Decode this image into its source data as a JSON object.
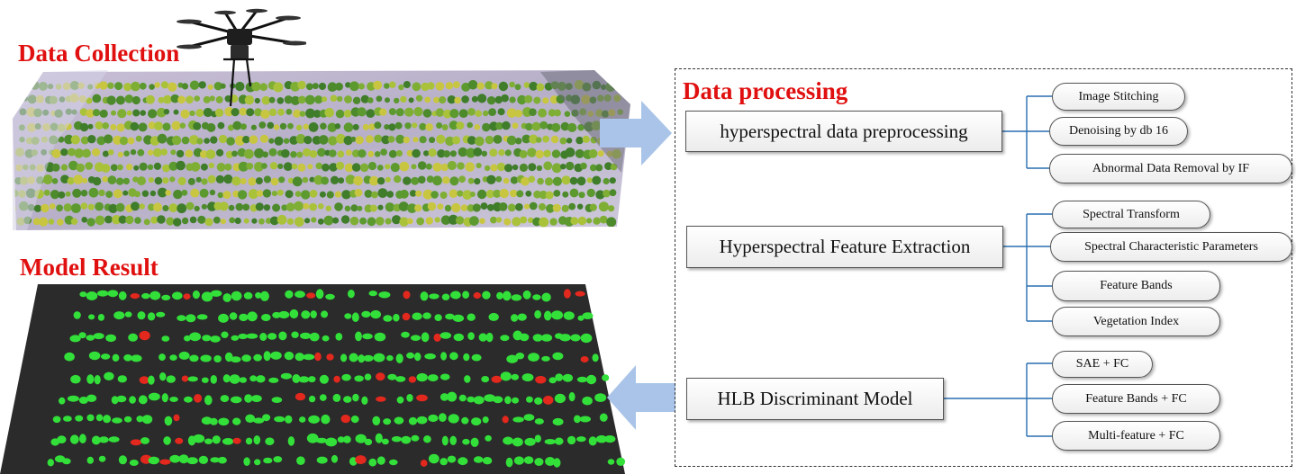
{
  "titles": {
    "data_collection": "Data Collection",
    "model_result": "Model Result",
    "data_processing": "Data processing"
  },
  "stages": [
    {
      "label": "hyperspectral data preprocessing",
      "methods": [
        "Image Stitching",
        "Denoising by db 16",
        "Abnormal Data Removal by IF"
      ]
    },
    {
      "label": "Hyperspectral Feature Extraction",
      "methods": [
        "Spectral Transform",
        "Spectral Characteristic Parameters",
        "Feature Bands",
        "Vegetation Index"
      ]
    },
    {
      "label": "HLB Discriminant Model",
      "methods": [
        "SAE + FC",
        "Feature Bands + FC",
        "Multi-feature + FC"
      ]
    }
  ],
  "colors": {
    "title_red": "#e01010",
    "connector_blue": "#2a6fb0",
    "arrow_blue": "#a9c4e8",
    "healthy_green": "#33e03a",
    "infected_red": "#e3281e",
    "result_background": "#2b2b2b"
  },
  "icons": {
    "drone": "uav-hexacopter-icon",
    "flow_right": "block-arrow-right-icon",
    "flow_left": "block-arrow-left-icon"
  }
}
